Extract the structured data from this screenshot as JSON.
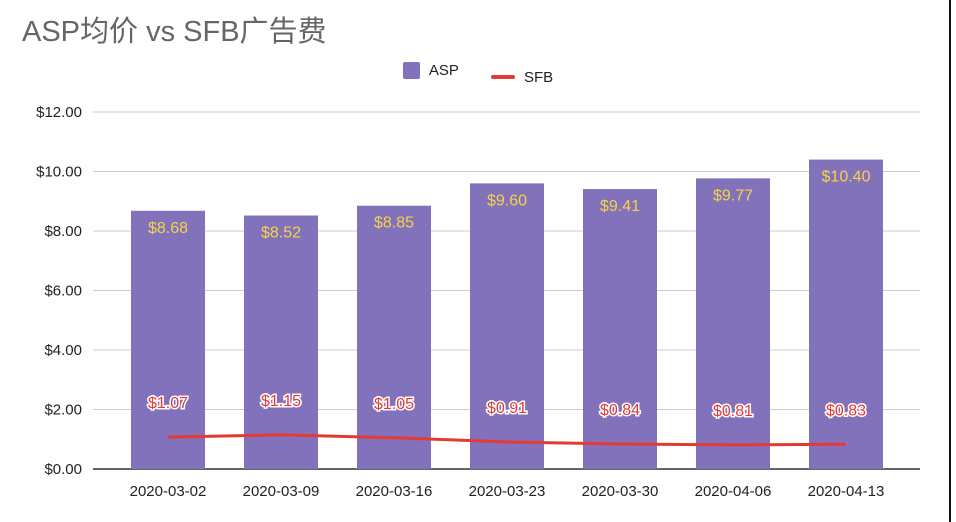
{
  "chart_data": {
    "type": "bar+line",
    "title": "ASP均价 vs SFB广告费",
    "categories": [
      "2020-03-02",
      "2020-03-09",
      "2020-03-16",
      "2020-03-23",
      "2020-03-30",
      "2020-04-06",
      "2020-04-13"
    ],
    "series": [
      {
        "name": "ASP",
        "type": "bar",
        "color": "#8272bb",
        "label_color": "#f6d349",
        "values": [
          8.68,
          8.52,
          8.85,
          9.6,
          9.41,
          9.77,
          10.4
        ],
        "labels": [
          "$8.68",
          "$8.52",
          "$8.85",
          "$9.60",
          "$9.41",
          "$9.77",
          "$10.40"
        ]
      },
      {
        "name": "SFB",
        "type": "line",
        "color": "#e53935",
        "values": [
          1.07,
          1.15,
          1.05,
          0.91,
          0.84,
          0.81,
          0.83
        ],
        "labels": [
          "$1.07",
          "$1.15",
          "$1.05",
          "$0.91",
          "$0.84",
          "$0.81",
          "$0.83"
        ]
      }
    ],
    "yticks": [
      "$0.00",
      "$2.00",
      "$4.00",
      "$6.00",
      "$8.00",
      "$10.00",
      "$12.00"
    ],
    "ylim": [
      0,
      12
    ],
    "grid": true,
    "legend": "top"
  }
}
